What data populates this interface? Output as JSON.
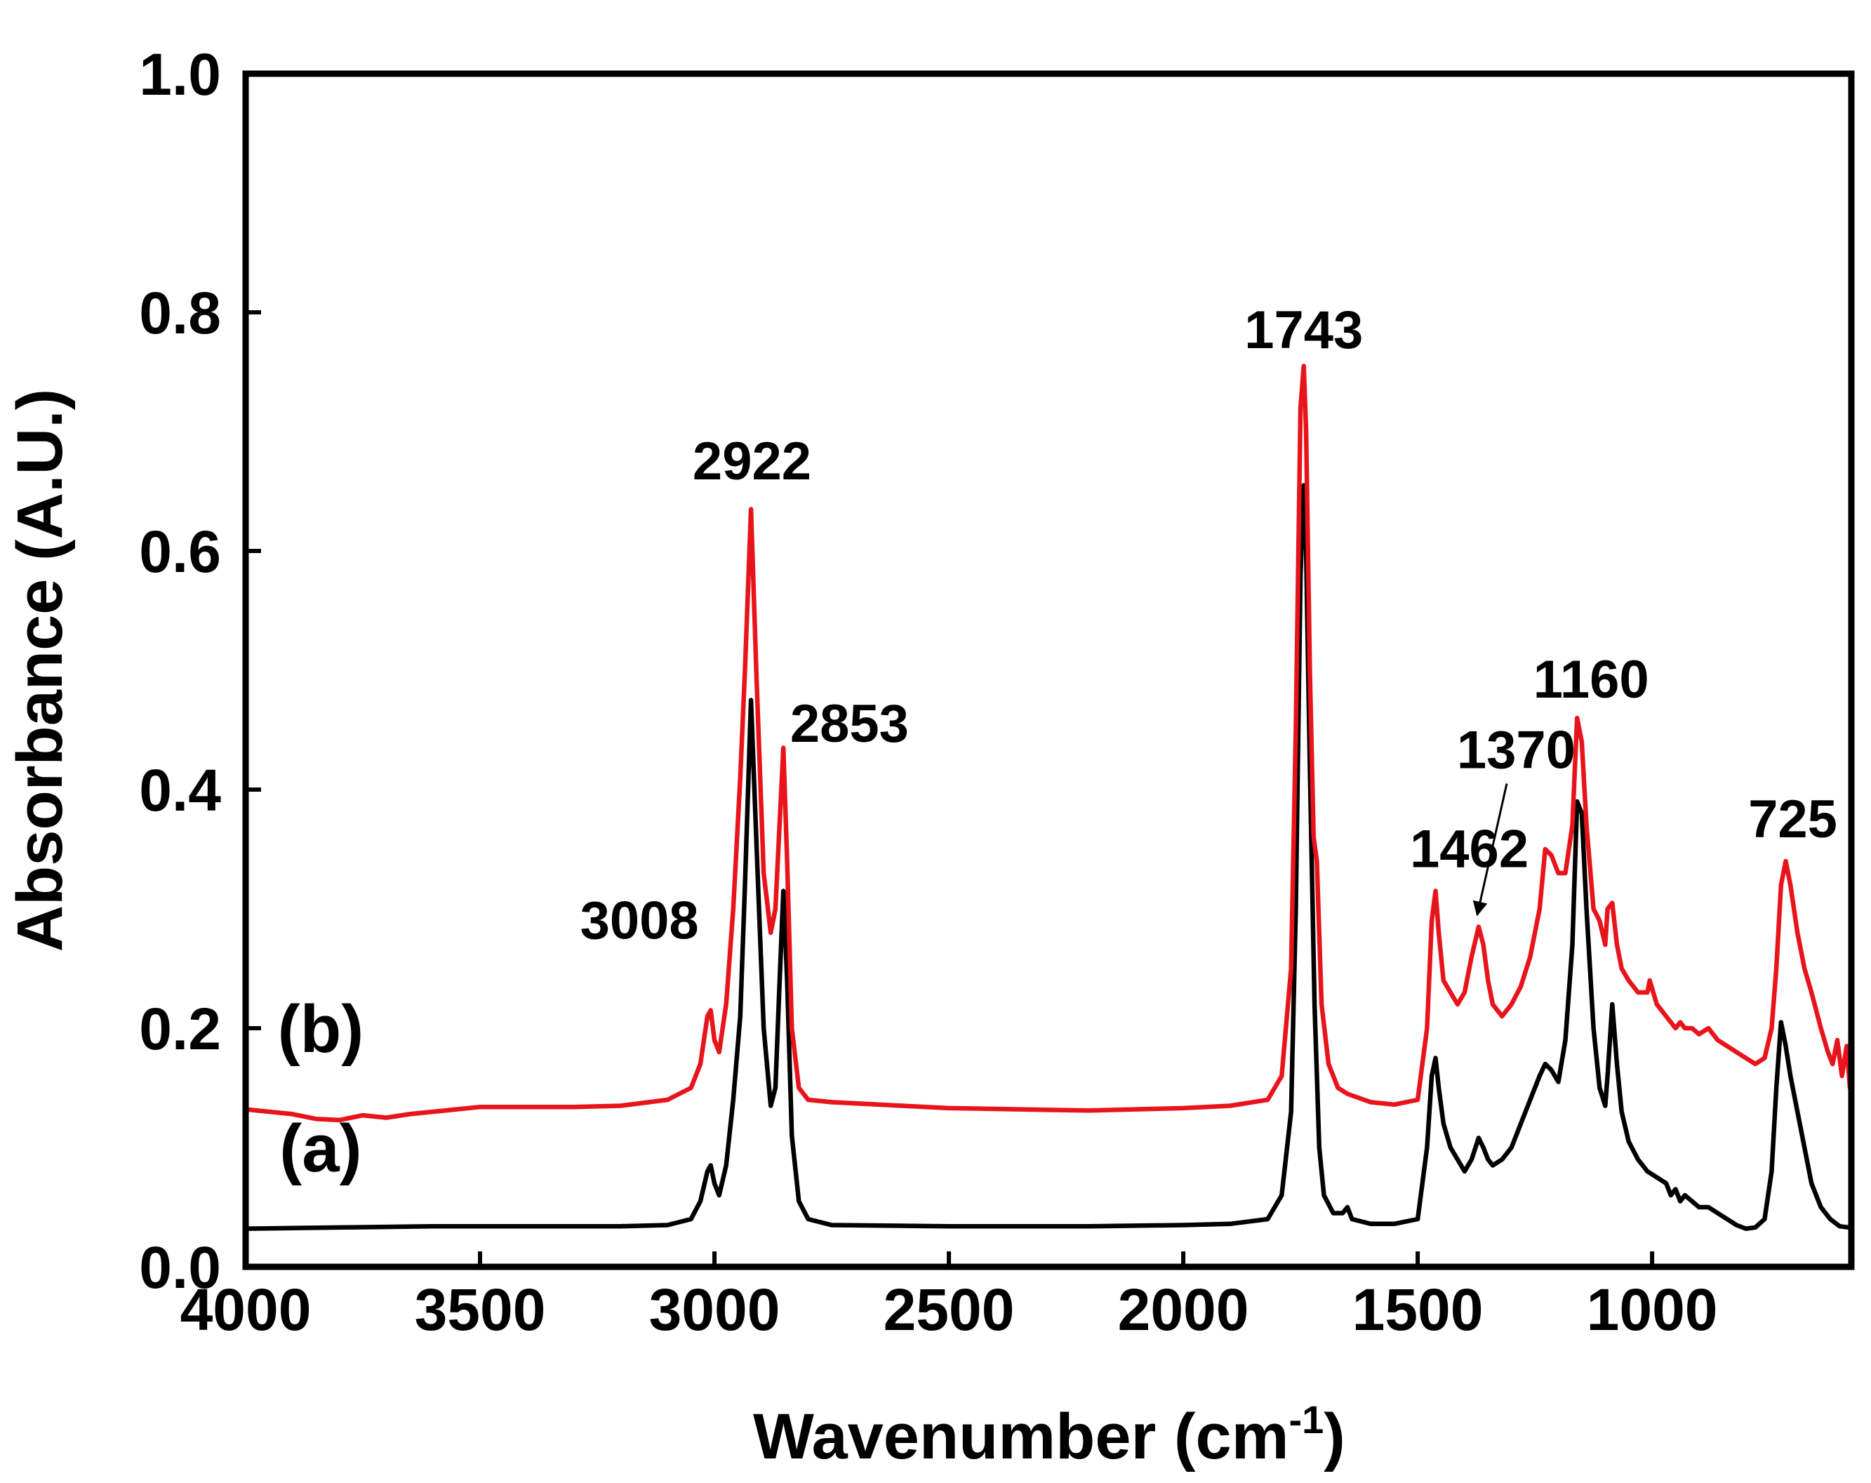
{
  "chart_data": {
    "type": "line",
    "title": "",
    "xlabel": "Wavenumber (cm",
    "xlabel_superscript": "-1",
    "xlabel_close": ")",
    "ylabel": "Absorbance (A.U.)",
    "xlim": [
      4000,
      575
    ],
    "ylim": [
      0.0,
      1.0
    ],
    "x_reversed": true,
    "grid": false,
    "x_ticks": [
      4000,
      3500,
      3000,
      2500,
      2000,
      1500,
      1000
    ],
    "x_tick_labels": [
      "4000",
      "3500",
      "3000",
      "2500",
      "2000",
      "1500",
      "1000"
    ],
    "y_ticks": [
      0.0,
      0.2,
      0.4,
      0.6,
      0.8,
      1.0
    ],
    "y_tick_labels": [
      "0.0",
      "0.2",
      "0.4",
      "0.6",
      "0.8",
      "1.0"
    ],
    "series": [
      {
        "name": "(a)",
        "color": "#000000",
        "x": [
          4000,
          3800,
          3600,
          3400,
          3200,
          3100,
          3050,
          3030,
          3015,
          3008,
          3000,
          2990,
          2975,
          2960,
          2945,
          2935,
          2922,
          2910,
          2895,
          2880,
          2870,
          2860,
          2853,
          2845,
          2835,
          2820,
          2800,
          2750,
          2500,
          2200,
          2000,
          1900,
          1820,
          1790,
          1770,
          1760,
          1750,
          1743,
          1738,
          1730,
          1720,
          1710,
          1700,
          1680,
          1660,
          1650,
          1640,
          1600,
          1550,
          1500,
          1480,
          1470,
          1462,
          1455,
          1445,
          1430,
          1415,
          1400,
          1385,
          1370,
          1360,
          1350,
          1340,
          1320,
          1300,
          1280,
          1260,
          1240,
          1228,
          1215,
          1200,
          1185,
          1170,
          1160,
          1150,
          1140,
          1125,
          1112,
          1100,
          1095,
          1085,
          1075,
          1065,
          1050,
          1030,
          1010,
          990,
          970,
          960,
          950,
          940,
          930,
          915,
          900,
          880,
          860,
          840,
          820,
          800,
          780,
          760,
          745,
          735,
          725,
          715,
          705,
          690,
          675,
          660,
          640,
          620,
          600,
          580
        ],
        "y": [
          0.032,
          0.033,
          0.034,
          0.034,
          0.034,
          0.035,
          0.04,
          0.055,
          0.08,
          0.085,
          0.07,
          0.06,
          0.085,
          0.14,
          0.21,
          0.32,
          0.475,
          0.35,
          0.2,
          0.135,
          0.15,
          0.25,
          0.315,
          0.24,
          0.11,
          0.055,
          0.04,
          0.035,
          0.034,
          0.034,
          0.035,
          0.036,
          0.04,
          0.06,
          0.13,
          0.3,
          0.58,
          0.655,
          0.6,
          0.42,
          0.22,
          0.1,
          0.06,
          0.045,
          0.045,
          0.05,
          0.04,
          0.036,
          0.036,
          0.04,
          0.1,
          0.16,
          0.175,
          0.15,
          0.12,
          0.1,
          0.09,
          0.08,
          0.09,
          0.108,
          0.1,
          0.09,
          0.085,
          0.09,
          0.1,
          0.12,
          0.14,
          0.16,
          0.17,
          0.165,
          0.155,
          0.19,
          0.27,
          0.39,
          0.38,
          0.3,
          0.2,
          0.15,
          0.135,
          0.16,
          0.22,
          0.17,
          0.13,
          0.105,
          0.09,
          0.08,
          0.075,
          0.07,
          0.06,
          0.065,
          0.055,
          0.06,
          0.055,
          0.05,
          0.05,
          0.045,
          0.04,
          0.035,
          0.032,
          0.033,
          0.04,
          0.08,
          0.15,
          0.205,
          0.185,
          0.16,
          0.13,
          0.1,
          0.07,
          0.05,
          0.04,
          0.034,
          0.033
        ]
      },
      {
        "name": "(b)",
        "color": "#e8141b",
        "x": [
          4000,
          3900,
          3850,
          3800,
          3750,
          3700,
          3650,
          3600,
          3500,
          3400,
          3300,
          3200,
          3100,
          3050,
          3030,
          3015,
          3008,
          3000,
          2990,
          2975,
          2960,
          2945,
          2935,
          2922,
          2910,
          2895,
          2880,
          2870,
          2860,
          2853,
          2845,
          2835,
          2820,
          2800,
          2750,
          2500,
          2200,
          2000,
          1900,
          1820,
          1790,
          1770,
          1760,
          1750,
          1743,
          1738,
          1730,
          1722,
          1715,
          1705,
          1690,
          1670,
          1650,
          1600,
          1550,
          1500,
          1480,
          1470,
          1462,
          1455,
          1445,
          1430,
          1415,
          1400,
          1385,
          1370,
          1360,
          1350,
          1340,
          1320,
          1300,
          1280,
          1260,
          1240,
          1228,
          1215,
          1200,
          1185,
          1170,
          1160,
          1150,
          1140,
          1125,
          1112,
          1100,
          1095,
          1085,
          1075,
          1065,
          1050,
          1030,
          1010,
          1005,
          990,
          970,
          960,
          950,
          940,
          930,
          915,
          900,
          880,
          860,
          840,
          820,
          800,
          780,
          760,
          745,
          735,
          725,
          715,
          705,
          690,
          675,
          660,
          640,
          625,
          615,
          605,
          595,
          585,
          578
        ],
        "y": [
          0.132,
          0.128,
          0.124,
          0.123,
          0.127,
          0.125,
          0.128,
          0.13,
          0.134,
          0.134,
          0.134,
          0.135,
          0.14,
          0.15,
          0.17,
          0.21,
          0.215,
          0.19,
          0.18,
          0.22,
          0.3,
          0.41,
          0.5,
          0.635,
          0.49,
          0.33,
          0.28,
          0.3,
          0.38,
          0.435,
          0.34,
          0.2,
          0.15,
          0.14,
          0.138,
          0.133,
          0.131,
          0.133,
          0.135,
          0.14,
          0.16,
          0.25,
          0.45,
          0.72,
          0.755,
          0.7,
          0.5,
          0.36,
          0.34,
          0.22,
          0.17,
          0.15,
          0.145,
          0.138,
          0.136,
          0.14,
          0.2,
          0.29,
          0.315,
          0.28,
          0.24,
          0.23,
          0.22,
          0.23,
          0.26,
          0.285,
          0.27,
          0.24,
          0.22,
          0.21,
          0.22,
          0.235,
          0.26,
          0.3,
          0.35,
          0.345,
          0.33,
          0.33,
          0.37,
          0.46,
          0.44,
          0.37,
          0.3,
          0.29,
          0.27,
          0.3,
          0.305,
          0.27,
          0.25,
          0.24,
          0.23,
          0.23,
          0.24,
          0.22,
          0.21,
          0.205,
          0.2,
          0.205,
          0.2,
          0.2,
          0.195,
          0.2,
          0.19,
          0.185,
          0.18,
          0.175,
          0.17,
          0.175,
          0.2,
          0.25,
          0.32,
          0.34,
          0.32,
          0.28,
          0.25,
          0.23,
          0.2,
          0.18,
          0.17,
          0.19,
          0.16,
          0.185,
          0.15
        ]
      }
    ],
    "series_labels": [
      {
        "text": "(a)",
        "x": 3840,
        "y": 0.08
      },
      {
        "text": "(b)",
        "x": 3840,
        "y": 0.18
      }
    ],
    "annotations": [
      {
        "text": "3008",
        "x": 3160,
        "y": 0.275
      },
      {
        "text": "2922",
        "x": 2920,
        "y": 0.66
      },
      {
        "text": "2853",
        "x": 2712,
        "y": 0.44
      },
      {
        "text": "1743",
        "x": 1743,
        "y": 0.77
      },
      {
        "text": "1462",
        "x": 1390,
        "y": 0.335
      },
      {
        "text": "1370",
        "x": 1290,
        "y": 0.418
      },
      {
        "text": "1160",
        "x": 1130,
        "y": 0.477
      },
      {
        "text": "725",
        "x": 700,
        "y": 0.36
      }
    ],
    "arrow": {
      "from": [
        1310,
        0.405
      ],
      "to": [
        1373,
        0.295
      ]
    }
  }
}
